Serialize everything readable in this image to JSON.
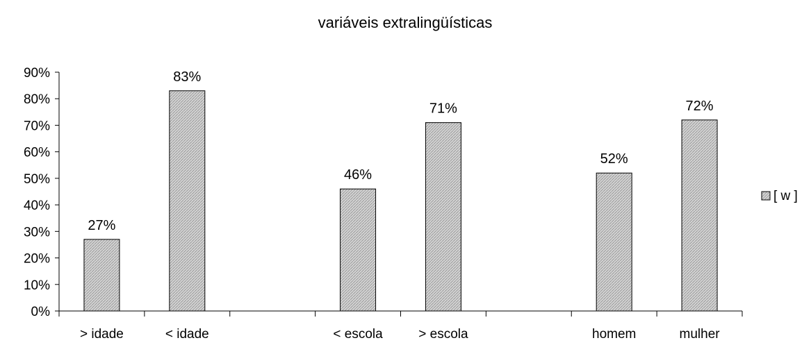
{
  "chart_data": {
    "type": "bar",
    "title": "variáveis extralingüísticas",
    "xlabel": "",
    "ylabel": "",
    "ylim": [
      0,
      90
    ],
    "y_ticks": [
      "0%",
      "10%",
      "20%",
      "30%",
      "40%",
      "50%",
      "60%",
      "70%",
      "80%",
      "90%"
    ],
    "categories": [
      "> idade",
      "< idade",
      "",
      "< escola",
      "> escola",
      "",
      "homem",
      "mulher"
    ],
    "series": [
      {
        "name": "[ w ]",
        "values": [
          27,
          83,
          null,
          46,
          71,
          null,
          52,
          72
        ],
        "labels": [
          "27%",
          "83%",
          "",
          "46%",
          "71%",
          "",
          "52%",
          "72%"
        ]
      }
    ],
    "grid": false,
    "legend": "right",
    "bar_fill": "#c8c8c8",
    "bar_stroke": "#000000"
  }
}
